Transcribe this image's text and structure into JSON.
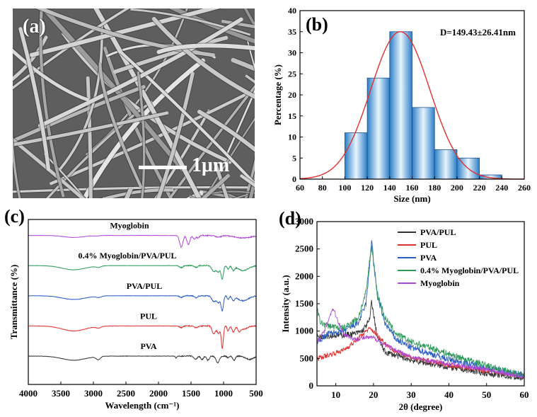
{
  "panel_a": {
    "tag": "(a)",
    "scale_label": "1μm"
  },
  "chart_data": [
    {
      "id": "b",
      "tag": "(b)",
      "type": "bar",
      "annotation": "D=149.43±26.41nm",
      "xlabel": "Size (nm)",
      "ylabel": "Percentage (%)",
      "xlim": [
        60,
        260
      ],
      "ylim": [
        0,
        40
      ],
      "xticks": [
        60,
        80,
        100,
        120,
        140,
        160,
        180,
        200,
        220,
        240,
        260
      ],
      "yticks": [
        0,
        5,
        10,
        15,
        20,
        25,
        30,
        35,
        40
      ],
      "bins": [
        [
          100,
          120
        ],
        [
          120,
          140
        ],
        [
          140,
          160
        ],
        [
          160,
          180
        ],
        [
          180,
          200
        ],
        [
          200,
          220
        ],
        [
          220,
          240
        ]
      ],
      "values": [
        11,
        24,
        35,
        17,
        7,
        5,
        1
      ],
      "fit": {
        "type": "gaussian",
        "mean": 149.43,
        "sd": 26.41,
        "peak": 35
      },
      "colors": {
        "bar_dark": "#2b7fc8",
        "bar_light": "#e8f4fd",
        "fit": "#e03030"
      }
    },
    {
      "id": "c",
      "tag": "(c)",
      "type": "line",
      "xlabel": "Wavelength (cm⁻¹)",
      "ylabel": "Transmittance (%)",
      "xlim": [
        4000,
        500
      ],
      "xticks": [
        4000,
        3500,
        3000,
        2500,
        2000,
        1500,
        1000,
        500
      ],
      "grid": false,
      "series": [
        {
          "name": "Myoglobin",
          "color": "#b04bd6",
          "offset": 4,
          "bands": [
            [
              3300,
              0.12,
              150
            ],
            [
              2950,
              0.03,
              40
            ],
            [
              1650,
              0.7,
              25
            ],
            [
              1540,
              0.55,
              22
            ],
            [
              1450,
              0.2,
              20
            ],
            [
              1390,
              0.15,
              20
            ],
            [
              1080,
              0.1,
              40
            ],
            [
              700,
              0.15,
              120
            ]
          ]
        },
        {
          "name": "0.4% Myoglobin/PVA/PUL",
          "color": "#2e9a5a",
          "offset": 3,
          "bands": [
            [
              3300,
              0.25,
              180
            ],
            [
              2920,
              0.08,
              40
            ],
            [
              1650,
              0.12,
              25
            ],
            [
              1420,
              0.1,
              25
            ],
            [
              1150,
              0.35,
              30
            ],
            [
              1080,
              0.35,
              25
            ],
            [
              1020,
              0.8,
              18
            ],
            [
              930,
              0.2,
              15
            ],
            [
              850,
              0.25,
              20
            ],
            [
              700,
              0.3,
              80
            ]
          ]
        },
        {
          "name": "PVA/PUL",
          "color": "#2a5cc4",
          "offset": 2,
          "bands": [
            [
              3300,
              0.22,
              180
            ],
            [
              2920,
              0.08,
              40
            ],
            [
              1650,
              0.1,
              25
            ],
            [
              1420,
              0.12,
              25
            ],
            [
              1150,
              0.35,
              30
            ],
            [
              1080,
              0.4,
              25
            ],
            [
              1020,
              0.9,
              18
            ],
            [
              930,
              0.2,
              15
            ],
            [
              850,
              0.25,
              20
            ],
            [
              700,
              0.3,
              80
            ]
          ]
        },
        {
          "name": "PUL",
          "color": "#e03030",
          "offset": 1,
          "bands": [
            [
              3300,
              0.3,
              180
            ],
            [
              2920,
              0.1,
              40
            ],
            [
              1650,
              0.1,
              25
            ],
            [
              1420,
              0.12,
              25
            ],
            [
              1150,
              0.5,
              25
            ],
            [
              1080,
              0.45,
              20
            ],
            [
              1020,
              1.35,
              16
            ],
            [
              930,
              0.3,
              15
            ],
            [
              850,
              0.35,
              20
            ],
            [
              760,
              0.25,
              20
            ],
            [
              700,
              0.2,
              60
            ]
          ]
        },
        {
          "name": "PVA",
          "color": "#333333",
          "offset": 0,
          "bands": [
            [
              3300,
              0.25,
              180
            ],
            [
              2940,
              0.12,
              30
            ],
            [
              2910,
              0.1,
              25
            ],
            [
              1730,
              0.12,
              10
            ],
            [
              1430,
              0.2,
              25
            ],
            [
              1330,
              0.2,
              20
            ],
            [
              1240,
              0.25,
              20
            ],
            [
              1090,
              0.4,
              25
            ],
            [
              930,
              0.1,
              15
            ],
            [
              840,
              0.25,
              20
            ],
            [
              600,
              0.2,
              60
            ]
          ]
        }
      ]
    },
    {
      "id": "d",
      "tag": "(d)",
      "type": "line",
      "xlabel": "2θ (degree)",
      "ylabel": "Intensity (a.u.)",
      "xlim": [
        5,
        60
      ],
      "ylim": [
        0,
        3000
      ],
      "xticks": [
        10,
        20,
        30,
        40,
        50,
        60
      ],
      "yticks": [
        0,
        500,
        1000,
        1500,
        2000,
        2500,
        3000
      ],
      "legend": "top-right",
      "series": [
        {
          "name": "PVA/PUL",
          "color": "#333333",
          "base": [
            [
              5,
              900
            ],
            [
              10,
              920
            ],
            [
              15,
              950
            ],
            [
              17,
              1000
            ],
            [
              19,
              1200
            ],
            [
              19.5,
              1560
            ],
            [
              20,
              1300
            ],
            [
              21,
              900
            ],
            [
              23,
              620
            ],
            [
              30,
              470
            ],
            [
              40,
              340
            ],
            [
              50,
              230
            ],
            [
              60,
              130
            ]
          ],
          "noise": 55
        },
        {
          "name": "PUL",
          "color": "#e03030",
          "base": [
            [
              5,
              500
            ],
            [
              8,
              560
            ],
            [
              12,
              650
            ],
            [
              15,
              800
            ],
            [
              18,
              1000
            ],
            [
              19,
              1040
            ],
            [
              20,
              1000
            ],
            [
              22,
              850
            ],
            [
              25,
              660
            ],
            [
              30,
              520
            ],
            [
              40,
              380
            ],
            [
              50,
              280
            ],
            [
              60,
              170
            ]
          ],
          "noise": 45
        },
        {
          "name": "PVA",
          "color": "#2a5cc4",
          "base": [
            [
              5,
              800
            ],
            [
              8,
              950
            ],
            [
              12,
              1000
            ],
            [
              16,
              1150
            ],
            [
              18,
              1500
            ],
            [
              19,
              2200
            ],
            [
              19.5,
              2700
            ],
            [
              20,
              2300
            ],
            [
              21,
              1650
            ],
            [
              23,
              1150
            ],
            [
              26,
              850
            ],
            [
              30,
              700
            ],
            [
              40,
              480
            ],
            [
              50,
              330
            ],
            [
              60,
              190
            ]
          ],
          "noise": 60
        },
        {
          "name": "0.4% Myoglobin/PVA/PUL",
          "color": "#2e9a5a",
          "base": [
            [
              5,
              1400
            ],
            [
              6,
              1150
            ],
            [
              8,
              1100
            ],
            [
              12,
              1050
            ],
            [
              16,
              1250
            ],
            [
              18,
              1700
            ],
            [
              19,
              2300
            ],
            [
              19.5,
              2550
            ],
            [
              20,
              2250
            ],
            [
              21,
              1700
            ],
            [
              23,
              1250
            ],
            [
              26,
              950
            ],
            [
              30,
              800
            ],
            [
              35,
              700
            ],
            [
              40,
              580
            ],
            [
              50,
              370
            ],
            [
              60,
              190
            ]
          ],
          "noise": 60
        },
        {
          "name": "Myoglobin",
          "color": "#b04bd6",
          "base": [
            [
              5,
              800
            ],
            [
              7,
              1000
            ],
            [
              8.5,
              1300
            ],
            [
              9.3,
              1420
            ],
            [
              10.2,
              1250
            ],
            [
              12,
              950
            ],
            [
              15,
              850
            ],
            [
              18,
              880
            ],
            [
              20,
              880
            ],
            [
              23,
              750
            ],
            [
              30,
              520
            ],
            [
              40,
              400
            ],
            [
              50,
              300
            ],
            [
              60,
              160
            ]
          ],
          "noise": 40
        }
      ]
    }
  ]
}
